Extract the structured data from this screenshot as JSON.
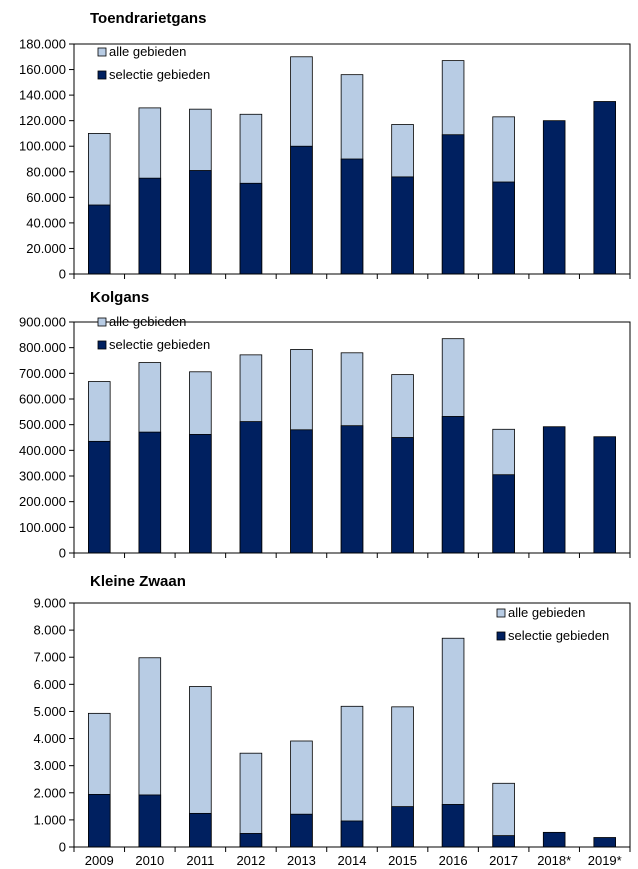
{
  "colors": {
    "alle": "#b8cce4",
    "selectie": "#002060",
    "axis": "#000000",
    "frame": "#000000"
  },
  "chart_data": [
    {
      "type": "bar",
      "stacked": "overlay",
      "title": "Toendrarietgans",
      "categories": [
        "2009",
        "2010",
        "2011",
        "2012",
        "2013",
        "2014",
        "2015",
        "2016",
        "2017",
        "2018*",
        "2019*"
      ],
      "ylim": [
        0,
        180000
      ],
      "yticks": [
        0,
        20000,
        40000,
        60000,
        80000,
        100000,
        120000,
        140000,
        160000,
        180000
      ],
      "yticklabels": [
        "0",
        "20.000",
        "40.000",
        "60.000",
        "80.000",
        "100.000",
        "120.000",
        "140.000",
        "160.000",
        "180.000"
      ],
      "legend_position": "top-left",
      "series": [
        {
          "name": "alle gebieden",
          "values": [
            110000,
            130000,
            129000,
            125000,
            170000,
            156000,
            117000,
            167000,
            123000,
            null,
            null
          ]
        },
        {
          "name": "selectie gebieden",
          "values": [
            54000,
            75000,
            81000,
            71000,
            100000,
            90000,
            76000,
            109000,
            72000,
            120000,
            135000
          ]
        }
      ],
      "show_xlabels": false
    },
    {
      "type": "bar",
      "stacked": "overlay",
      "title": "Kolgans",
      "categories": [
        "2009",
        "2010",
        "2011",
        "2012",
        "2013",
        "2014",
        "2015",
        "2016",
        "2017",
        "2018*",
        "2019*"
      ],
      "ylim": [
        0,
        900000
      ],
      "yticks": [
        0,
        100000,
        200000,
        300000,
        400000,
        500000,
        600000,
        700000,
        800000,
        900000
      ],
      "yticklabels": [
        "0",
        "100.000",
        "200.000",
        "300.000",
        "400.000",
        "500.000",
        "600.000",
        "700.000",
        "800.000",
        "900.000"
      ],
      "legend_position": "top-left",
      "series": [
        {
          "name": "alle gebieden",
          "values": [
            668000,
            742000,
            706000,
            772000,
            793000,
            780000,
            695000,
            835000,
            482000,
            null,
            null
          ]
        },
        {
          "name": "selectie gebieden",
          "values": [
            435000,
            471000,
            462000,
            512000,
            480000,
            496000,
            450000,
            532000,
            305000,
            492000,
            453000
          ]
        }
      ],
      "show_xlabels": false
    },
    {
      "type": "bar",
      "stacked": "overlay",
      "title": "Kleine Zwaan",
      "categories": [
        "2009",
        "2010",
        "2011",
        "2012",
        "2013",
        "2014",
        "2015",
        "2016",
        "2017",
        "2018*",
        "2019*"
      ],
      "ylim": [
        0,
        9000
      ],
      "yticks": [
        0,
        1000,
        2000,
        3000,
        4000,
        5000,
        6000,
        7000,
        8000,
        9000
      ],
      "yticklabels": [
        "0",
        "1.000",
        "2.000",
        "3.000",
        "4.000",
        "5.000",
        "6.000",
        "7.000",
        "8.000",
        "9.000"
      ],
      "legend_position": "top-right",
      "series": [
        {
          "name": "alle gebieden",
          "values": [
            4930,
            6980,
            5920,
            3460,
            3910,
            5190,
            5170,
            7700,
            2350,
            null,
            null
          ]
        },
        {
          "name": "selectie gebieden",
          "values": [
            1940,
            1920,
            1240,
            500,
            1210,
            960,
            1490,
            1570,
            420,
            540,
            350
          ]
        }
      ],
      "show_xlabels": true
    }
  ]
}
